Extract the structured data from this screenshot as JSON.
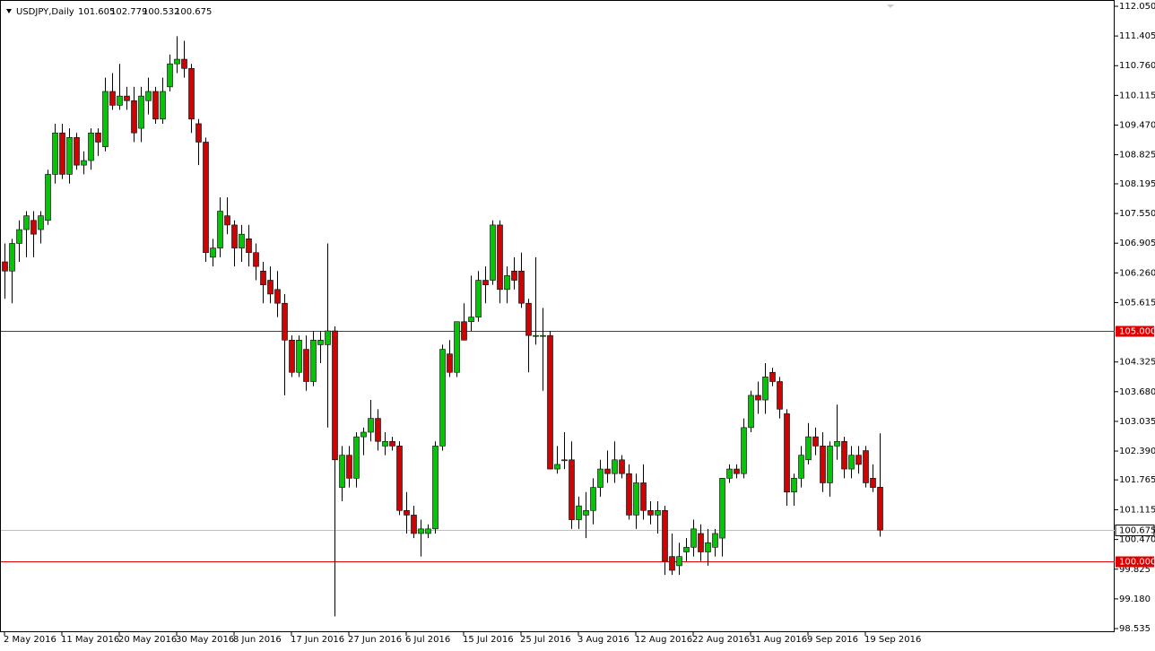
{
  "chart_data": {
    "type": "candlestick",
    "title": "USDJPY,Daily",
    "categories": [
      "2 May 2016",
      null,
      null,
      null,
      null,
      null,
      null,
      null,
      "11 May 2016",
      null,
      null,
      null,
      null,
      null,
      null,
      null,
      "20 May 2016",
      null,
      null,
      null,
      null,
      null,
      null,
      null,
      "30 May 2016",
      null,
      null,
      null,
      null,
      null,
      null,
      null,
      "8 Jun 2016",
      null,
      null,
      null,
      null,
      null,
      null,
      null,
      "17 Jun 2016",
      null,
      null,
      null,
      null,
      null,
      null,
      null,
      "27 Jun 2016",
      null,
      null,
      null,
      null,
      null,
      null,
      null,
      "6 Jul 2016",
      null,
      null,
      null,
      null,
      null,
      null,
      null,
      "15 Jul 2016",
      null,
      null,
      null,
      null,
      null,
      null,
      null,
      "25 Jul 2016",
      null,
      null,
      null,
      null,
      null,
      null,
      null,
      "3 Aug 2016",
      null,
      null,
      null,
      null,
      null,
      null,
      null,
      "12 Aug 2016",
      null,
      null,
      null,
      null,
      null,
      null,
      null,
      "22 Aug 2016",
      null,
      null,
      null,
      null,
      null,
      null,
      null,
      "31 Aug 2016",
      null,
      null,
      null,
      null,
      null,
      null,
      null,
      "9 Sep 2016",
      null,
      null,
      null,
      null,
      null,
      null,
      null,
      "19 Sep 2016",
      null,
      null
    ],
    "open": [
      106.5,
      106.3,
      106.9,
      107.2,
      107.4,
      107.2,
      107.4,
      108.4,
      109.3,
      108.4,
      109.2,
      108.6,
      108.7,
      109.3,
      109.0,
      110.2,
      109.9,
      110.1,
      110.0,
      109.4,
      110.0,
      110.2,
      109.6,
      110.3,
      110.8,
      110.9,
      110.7,
      109.5,
      109.1,
      106.6,
      106.8,
      107.5,
      107.3,
      106.8,
      107.0,
      106.7,
      106.3,
      106.1,
      105.9,
      105.6,
      104.8,
      104.1,
      104.6,
      103.9,
      104.7,
      104.7,
      105.0,
      101.6,
      102.3,
      101.8,
      102.7,
      102.8,
      103.1,
      102.5,
      102.6,
      102.5,
      101.1,
      101.0,
      100.6,
      100.6,
      100.7,
      102.5,
      104.5,
      104.1,
      105.2,
      105.2,
      105.3,
      106.1,
      106.1,
      107.3,
      105.9,
      106.3,
      106.3,
      105.6,
      104.9,
      104.9,
      104.9,
      102.0,
      102.2,
      102.2,
      100.9,
      101.0,
      101.1,
      101.6,
      102.0,
      101.9,
      102.2,
      101.9,
      101.0,
      101.7,
      101.1,
      101.0,
      101.1,
      100.1,
      99.9,
      100.2,
      100.3,
      100.6,
      100.2,
      100.3,
      100.5,
      101.8,
      102.0,
      101.9,
      102.9,
      103.6,
      103.5,
      104.1,
      103.9,
      103.2,
      101.5,
      101.8,
      102.2,
      102.7,
      102.5,
      101.7,
      102.5,
      102.6,
      102.0,
      102.3,
      102.4,
      101.8,
      101.605
    ],
    "high": [
      106.9,
      107.0,
      107.4,
      107.6,
      107.6,
      107.6,
      108.5,
      109.5,
      109.5,
      109.4,
      109.3,
      108.9,
      109.4,
      109.4,
      110.5,
      110.6,
      110.8,
      110.3,
      110.3,
      110.3,
      110.5,
      110.3,
      110.5,
      111.0,
      111.4,
      111.3,
      110.8,
      109.6,
      109.2,
      107.0,
      107.9,
      107.9,
      107.4,
      107.3,
      107.3,
      106.9,
      106.5,
      106.4,
      106.3,
      105.8,
      104.9,
      104.9,
      104.9,
      105.0,
      105.0,
      106.9,
      105.1,
      102.5,
      102.5,
      102.8,
      102.9,
      103.5,
      103.3,
      102.8,
      102.7,
      102.6,
      101.5,
      101.2,
      100.9,
      100.8,
      102.6,
      104.7,
      104.8,
      105.2,
      105.6,
      106.2,
      106.3,
      106.4,
      107.4,
      107.4,
      106.4,
      106.6,
      106.7,
      105.7,
      106.6,
      105.5,
      105.0,
      102.5,
      102.8,
      102.6,
      101.4,
      101.5,
      101.8,
      102.2,
      102.4,
      102.6,
      102.3,
      102.1,
      101.9,
      102.1,
      101.3,
      101.3,
      101.2,
      100.6,
      100.4,
      100.5,
      100.9,
      100.8,
      100.7,
      100.7,
      101.8,
      102.1,
      102.1,
      103.1,
      103.7,
      103.9,
      104.3,
      104.2,
      104.0,
      103.3,
      101.9,
      102.5,
      103.0,
      102.9,
      102.8,
      102.6,
      103.4,
      102.7,
      102.5,
      102.5,
      102.5,
      102.1,
      102.779
    ],
    "low": [
      105.7,
      105.6,
      106.5,
      106.6,
      106.6,
      106.9,
      107.3,
      108.2,
      108.3,
      108.2,
      108.5,
      108.4,
      108.5,
      108.8,
      108.9,
      109.8,
      109.8,
      109.8,
      109.1,
      109.1,
      109.7,
      109.5,
      109.5,
      110.2,
      110.6,
      110.5,
      109.3,
      108.6,
      106.5,
      106.4,
      106.6,
      107.1,
      106.4,
      106.5,
      106.4,
      106.1,
      105.6,
      105.6,
      105.3,
      103.6,
      104.0,
      104.0,
      103.7,
      103.8,
      104.3,
      102.9,
      98.8,
      101.3,
      101.6,
      101.6,
      102.3,
      102.6,
      102.4,
      102.3,
      102.4,
      101.0,
      100.6,
      100.5,
      100.1,
      100.5,
      100.6,
      102.4,
      104.0,
      104.0,
      104.8,
      105.0,
      105.2,
      105.6,
      106.0,
      105.6,
      105.6,
      105.9,
      105.5,
      104.1,
      104.7,
      103.7,
      102.0,
      101.9,
      102.0,
      100.7,
      100.7,
      100.5,
      100.8,
      101.4,
      101.7,
      101.7,
      101.8,
      100.9,
      100.7,
      100.9,
      100.8,
      100.6,
      99.7,
      99.7,
      99.7,
      100.0,
      100.1,
      100.0,
      99.9,
      100.1,
      100.1,
      101.7,
      101.8,
      101.8,
      102.8,
      103.2,
      103.2,
      103.8,
      103.1,
      101.2,
      101.2,
      101.6,
      102.1,
      102.3,
      101.5,
      101.4,
      102.2,
      101.8,
      101.8,
      101.9,
      101.6,
      101.5,
      100.532
    ],
    "close": [
      106.3,
      106.9,
      107.2,
      107.5,
      107.1,
      107.5,
      108.4,
      109.3,
      108.4,
      109.2,
      108.6,
      108.7,
      109.3,
      109.1,
      110.2,
      109.9,
      110.1,
      110.0,
      109.3,
      110.1,
      110.2,
      109.6,
      110.2,
      110.8,
      110.9,
      110.7,
      109.6,
      109.1,
      106.7,
      106.8,
      107.6,
      107.3,
      106.8,
      107.1,
      106.7,
      106.4,
      106.0,
      105.8,
      105.6,
      104.8,
      104.1,
      104.8,
      103.9,
      104.8,
      104.8,
      105.0,
      102.2,
      102.3,
      101.8,
      102.7,
      102.8,
      103.1,
      102.6,
      102.6,
      102.5,
      101.1,
      101.0,
      100.6,
      100.7,
      100.7,
      102.5,
      104.6,
      104.1,
      105.2,
      104.8,
      105.3,
      106.1,
      106.0,
      107.3,
      105.9,
      106.2,
      106.1,
      105.6,
      104.9,
      104.9,
      104.9,
      102.0,
      102.1,
      102.2,
      100.9,
      101.2,
      101.1,
      101.6,
      102.0,
      101.9,
      102.2,
      101.9,
      101.0,
      101.7,
      101.1,
      101.0,
      101.1,
      100.0,
      99.8,
      100.1,
      100.3,
      100.7,
      100.2,
      100.4,
      100.6,
      101.8,
      102.0,
      101.9,
      102.9,
      103.6,
      103.5,
      104.0,
      103.9,
      103.3,
      101.5,
      101.8,
      102.3,
      102.7,
      102.5,
      101.7,
      102.5,
      102.6,
      102.0,
      102.3,
      102.1,
      101.7,
      101.6,
      100.675
    ],
    "up_color": "#00c800",
    "down_color": "#d40000",
    "ylim": [
      98.535,
      112.05
    ],
    "yticks": [
      {
        "value": 112.05,
        "label": "112.050"
      },
      {
        "value": 111.405,
        "label": "111.405"
      },
      {
        "value": 110.76,
        "label": "110.760"
      },
      {
        "value": 110.115,
        "label": "110.115"
      },
      {
        "value": 109.47,
        "label": "109.470"
      },
      {
        "value": 108.825,
        "label": "108.825"
      },
      {
        "value": 108.195,
        "label": "108.195"
      },
      {
        "value": 107.55,
        "label": "107.550"
      },
      {
        "value": 106.905,
        "label": "106.905"
      },
      {
        "value": 106.26,
        "label": "106.260"
      },
      {
        "value": 105.615,
        "label": "105.615"
      },
      {
        "value": 104.325,
        "label": "104.325"
      },
      {
        "value": 103.68,
        "label": "103.680"
      },
      {
        "value": 103.035,
        "label": "103.035"
      },
      {
        "value": 102.39,
        "label": "102.390"
      },
      {
        "value": 101.765,
        "label": "101.765"
      },
      {
        "value": 101.115,
        "label": "101.115"
      },
      {
        "value": 100.47,
        "label": "100.470"
      },
      {
        "value": 99.825,
        "label": "99.825"
      },
      {
        "value": 99.18,
        "label": "99.180"
      },
      {
        "value": 98.535,
        "label": "98.535"
      }
    ],
    "hlines": [
      {
        "value": 105,
        "label": "105.000",
        "color": "#e00000"
      },
      {
        "value": 100,
        "label": "100.000",
        "color": "#e00000"
      }
    ],
    "grid": false
  }
}
